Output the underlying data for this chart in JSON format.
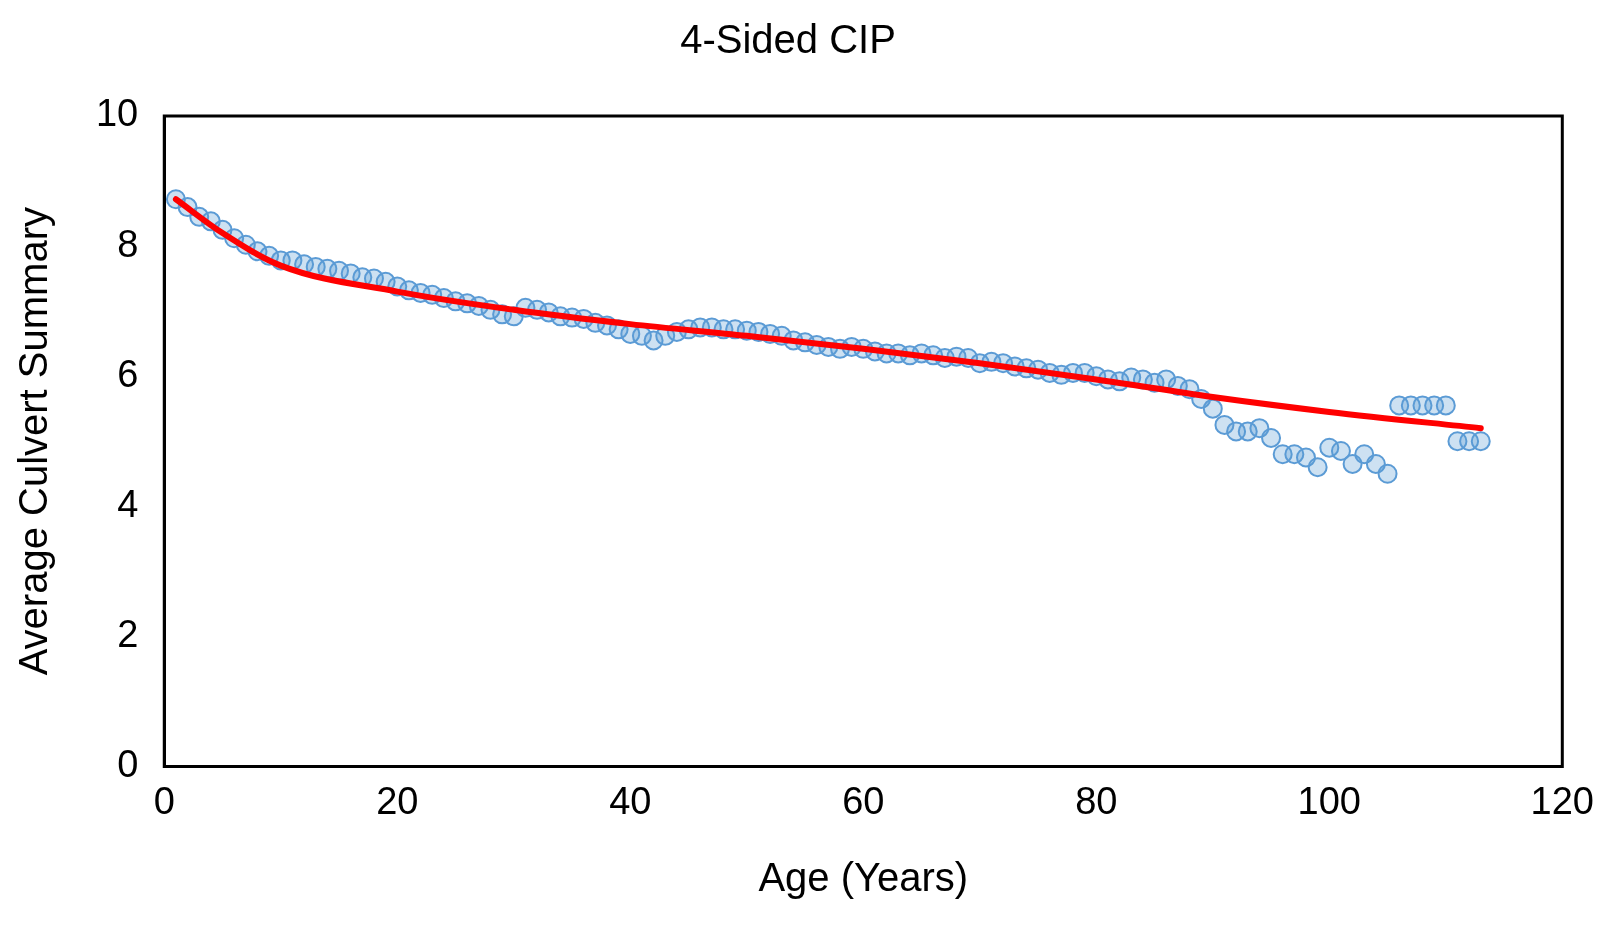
{
  "chart_data": {
    "type": "scatter",
    "title": "4-Sided CIP",
    "xlabel": "Age (Years)",
    "ylabel": "Average Culvert Summary",
    "xlim": [
      0,
      120
    ],
    "xticks": [
      0,
      20,
      40,
      60,
      80,
      100,
      120
    ],
    "ylim": [
      0,
      10
    ],
    "yticks": [
      0,
      2,
      4,
      6,
      8,
      10
    ],
    "grid": false,
    "legend": false,
    "series": [
      {
        "marker": "circle",
        "color": "#5b9bd5",
        "x": [
          1,
          2,
          3,
          4,
          5,
          6,
          7,
          8,
          9,
          10,
          11,
          12,
          13,
          14,
          15,
          16,
          17,
          18,
          19,
          20,
          21,
          22,
          23,
          24,
          25,
          26,
          27,
          28,
          29,
          30,
          31,
          32,
          33,
          34,
          35,
          36,
          37,
          38,
          39,
          40,
          41,
          42,
          43,
          44,
          45,
          46,
          47,
          48,
          49,
          50,
          51,
          52,
          53,
          54,
          55,
          56,
          57,
          58,
          59,
          60,
          61,
          62,
          63,
          64,
          65,
          66,
          67,
          68,
          69,
          70,
          71,
          72,
          73,
          74,
          75,
          76,
          77,
          78,
          79,
          80,
          81,
          82,
          83,
          84,
          85,
          86,
          87,
          88,
          89,
          90,
          91,
          92,
          93,
          94,
          95,
          96,
          97,
          98,
          99,
          100,
          101,
          102,
          103,
          104,
          105,
          106,
          107,
          108,
          109,
          110,
          111,
          112,
          113
        ],
        "values": [
          8.72,
          8.6,
          8.45,
          8.38,
          8.25,
          8.12,
          8.02,
          7.92,
          7.85,
          7.78,
          7.78,
          7.72,
          7.68,
          7.65,
          7.62,
          7.58,
          7.52,
          7.5,
          7.45,
          7.38,
          7.32,
          7.28,
          7.25,
          7.2,
          7.15,
          7.12,
          7.08,
          7.02,
          6.95,
          6.92,
          7.05,
          7.02,
          6.98,
          6.92,
          6.9,
          6.88,
          6.82,
          6.78,
          6.72,
          6.65,
          6.62,
          6.55,
          6.62,
          6.68,
          6.72,
          6.75,
          6.75,
          6.72,
          6.72,
          6.7,
          6.68,
          6.65,
          6.62,
          6.55,
          6.52,
          6.48,
          6.45,
          6.42,
          6.45,
          6.42,
          6.38,
          6.35,
          6.35,
          6.32,
          6.35,
          6.32,
          6.28,
          6.3,
          6.28,
          6.2,
          6.22,
          6.2,
          6.15,
          6.12,
          6.1,
          6.05,
          6.02,
          6.05,
          6.05,
          6.0,
          5.95,
          5.92,
          5.98,
          5.95,
          5.9,
          5.95,
          5.85,
          5.8,
          5.65,
          5.5,
          5.25,
          5.15,
          5.15,
          5.2,
          5.05,
          4.8,
          4.8,
          4.75,
          4.6,
          4.9,
          4.85,
          4.65,
          4.8,
          4.65,
          4.5,
          5.55,
          5.55,
          5.55,
          5.55,
          5.55,
          5.0,
          5.0,
          5.0
        ]
      },
      {
        "type": "line",
        "marker": "none",
        "color": "#ff0000",
        "x": [
          1,
          5,
          10,
          20,
          30,
          40,
          50,
          60,
          70,
          80,
          90,
          100,
          113
        ],
        "values": [
          8.72,
          8.2,
          7.7,
          7.3,
          7.02,
          6.8,
          6.62,
          6.42,
          6.2,
          5.95,
          5.68,
          5.45,
          5.2
        ]
      }
    ]
  }
}
